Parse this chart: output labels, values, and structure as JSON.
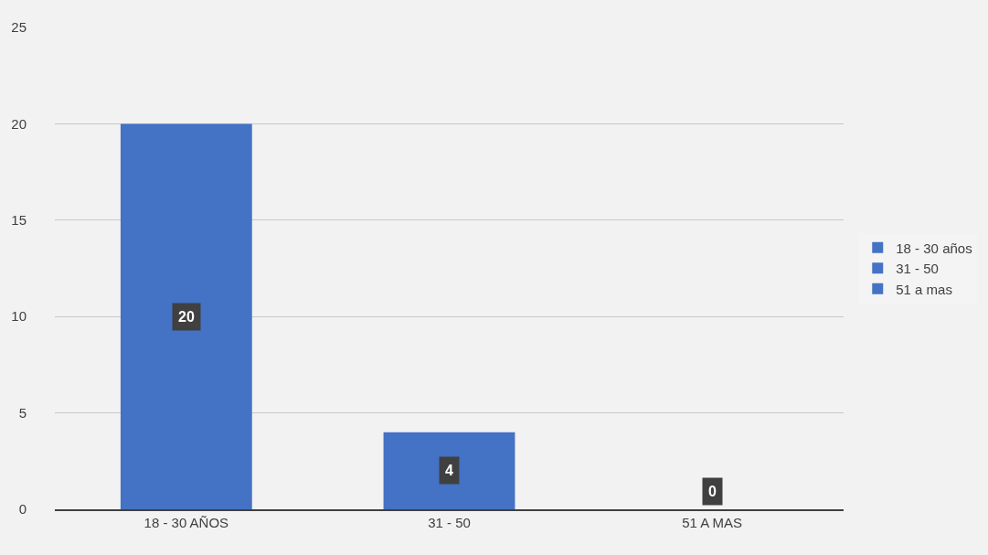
{
  "chart_data": {
    "type": "bar",
    "categories": [
      "18 - 30 AÑOS",
      "31 - 50",
      "51 A MAS"
    ],
    "series": [
      {
        "name": "18 - 30 años",
        "color": "#4472c4",
        "values": [
          20,
          null,
          null
        ]
      },
      {
        "name": "31 - 50",
        "color": "#4472c4",
        "values": [
          null,
          4,
          null
        ]
      },
      {
        "name": "51 a mas",
        "color": "#4472c4",
        "values": [
          null,
          null,
          0
        ]
      }
    ],
    "stacked": true,
    "ylim": [
      0,
      25
    ],
    "yticks": [
      0,
      5,
      10,
      15,
      20,
      25
    ],
    "grid": "y",
    "legend": "right",
    "data_labels": true
  }
}
